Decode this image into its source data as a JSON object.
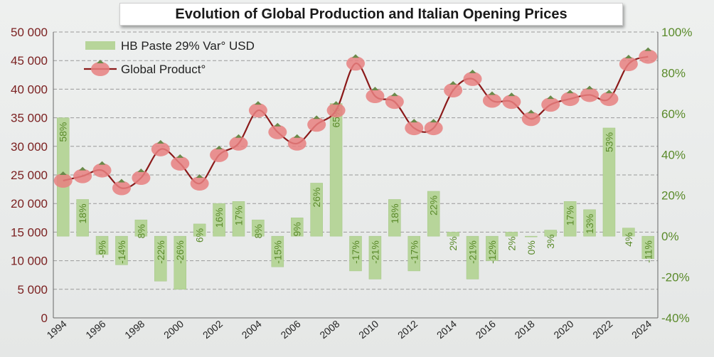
{
  "chart_data": {
    "type": "bar+line",
    "title": "Evolution of Global Production and Italian Opening Prices",
    "years": [
      1994,
      1995,
      1996,
      1997,
      1998,
      1999,
      2000,
      2001,
      2002,
      2003,
      2004,
      2005,
      2006,
      2007,
      2008,
      2009,
      2010,
      2011,
      2012,
      2013,
      2014,
      2015,
      2016,
      2017,
      2018,
      2019,
      2020,
      2021,
      2022,
      2023,
      2024
    ],
    "x_tick_labels": [
      "1994",
      "1996",
      "1998",
      "2000",
      "2002",
      "2004",
      "2006",
      "2008",
      "2010",
      "2012",
      "2014",
      "2016",
      "2018",
      "2020",
      "2022",
      "2024"
    ],
    "left_axis": {
      "ylim": [
        0,
        50000
      ],
      "tick_labels": [
        "0",
        "5 000",
        "10 000",
        "15 000",
        "20 000",
        "25 000",
        "30 000",
        "35 000",
        "40 000",
        "45 000",
        "50 000"
      ],
      "color": "#8b1a1a"
    },
    "right_axis": {
      "ylim": [
        -40,
        100
      ],
      "tick_labels": [
        "-40%",
        "-20%",
        "0%",
        "20%",
        "40%",
        "60%",
        "80%",
        "100%"
      ],
      "color": "#6a9a30"
    },
    "series": [
      {
        "name": "HB Paste 29% Var° USD",
        "kind": "bar",
        "axis": "right",
        "color": "#b7d59a",
        "values": [
          58,
          18,
          -9,
          -14,
          8,
          -22,
          -26,
          6,
          16,
          17,
          8,
          -15,
          9,
          26,
          65,
          -17,
          -21,
          18,
          -17,
          22,
          2,
          -21,
          -12,
          2,
          0,
          3,
          17,
          13,
          53,
          4,
          -11
        ],
        "labels": [
          "58%",
          "18%",
          "-9%",
          "-14%",
          "8%",
          "-22%",
          "-26%",
          "6%",
          "16%",
          "17%",
          "8%",
          "-15%",
          "9%",
          "26%",
          "65%",
          "-17%",
          "-21%",
          "18%",
          "-17%",
          "22%",
          "2%",
          "-21%",
          "-12%",
          "2%",
          "0%",
          "3%",
          "17%",
          "13%",
          "53%",
          "4%",
          "-11%"
        ]
      },
      {
        "name": "Global Product°",
        "kind": "line",
        "axis": "left",
        "color": "#8b1a1a",
        "marker_color": "#e88080",
        "values": [
          24000,
          24800,
          25800,
          22700,
          24500,
          29500,
          27000,
          23500,
          28500,
          30500,
          36300,
          32500,
          30500,
          33800,
          36300,
          44500,
          38800,
          37800,
          33200,
          33200,
          39800,
          41800,
          38000,
          37800,
          34800,
          37300,
          38300,
          39000,
          38300,
          44400,
          45700
        ]
      }
    ],
    "legend_position": "top-left",
    "grid": true
  }
}
